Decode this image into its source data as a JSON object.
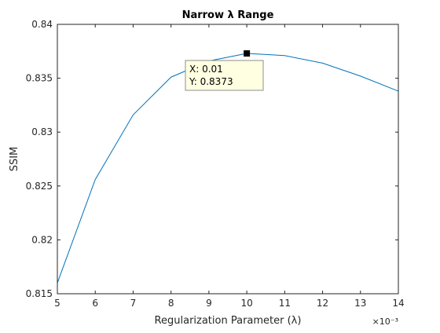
{
  "chart_data": {
    "type": "line",
    "title": "Narrow λ Range",
    "xlabel": "Regularization Parameter (λ)",
    "ylabel": "SSIM",
    "x_exponent_label": "×10⁻³",
    "xlim": [
      5,
      14
    ],
    "ylim": [
      0.815,
      0.84
    ],
    "x_ticks": [
      "5",
      "6",
      "7",
      "8",
      "9",
      "10",
      "11",
      "12",
      "13",
      "14"
    ],
    "y_ticks": [
      "0.815",
      "0.82",
      "0.825",
      "0.83",
      "0.835",
      "0.84"
    ],
    "grid": false,
    "line_color": "#0072BD",
    "series": [
      {
        "x": [
          5,
          6,
          7,
          8,
          9,
          10,
          11,
          12,
          13,
          14
        ],
        "values": [
          0.816,
          0.8256,
          0.8316,
          0.8351,
          0.8366,
          0.8373,
          0.8371,
          0.8364,
          0.8352,
          0.8338
        ]
      }
    ],
    "datatip": {
      "x": 10,
      "y": 0.8373,
      "x_text": "X: 0.01",
      "y_text": "Y: 0.8373"
    }
  }
}
